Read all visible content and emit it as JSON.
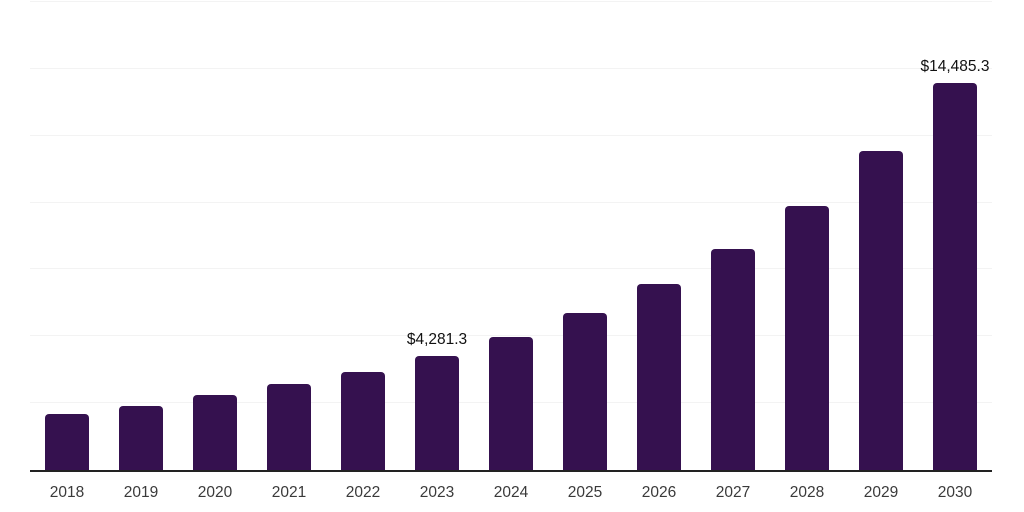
{
  "chart_data": {
    "type": "bar",
    "title": "",
    "xlabel": "",
    "ylabel": "",
    "categories": [
      "2018",
      "2019",
      "2020",
      "2021",
      "2022",
      "2023",
      "2024",
      "2025",
      "2026",
      "2027",
      "2028",
      "2029",
      "2030"
    ],
    "values": [
      2100,
      2400,
      2800,
      3220,
      3670,
      4281.3,
      4990,
      5860,
      6960,
      8250,
      9860,
      11940,
      14485.3
    ],
    "labels": [
      "",
      "",
      "",
      "",
      "",
      "$4,281.3",
      "",
      "",
      "",
      "",
      "",
      "",
      "$14,485.3"
    ],
    "ylim": [
      0,
      17500
    ],
    "gridline_step": 2500,
    "grid": "horizontal-only",
    "y_axis_tick_labels": "none",
    "legend": "none"
  },
  "colors": {
    "bar": "#35114F",
    "gridline": "#f3f3f3",
    "axis_line": "#222222",
    "tick_label": "#3a3a3a",
    "data_label": "#111111",
    "background": "#ffffff"
  }
}
